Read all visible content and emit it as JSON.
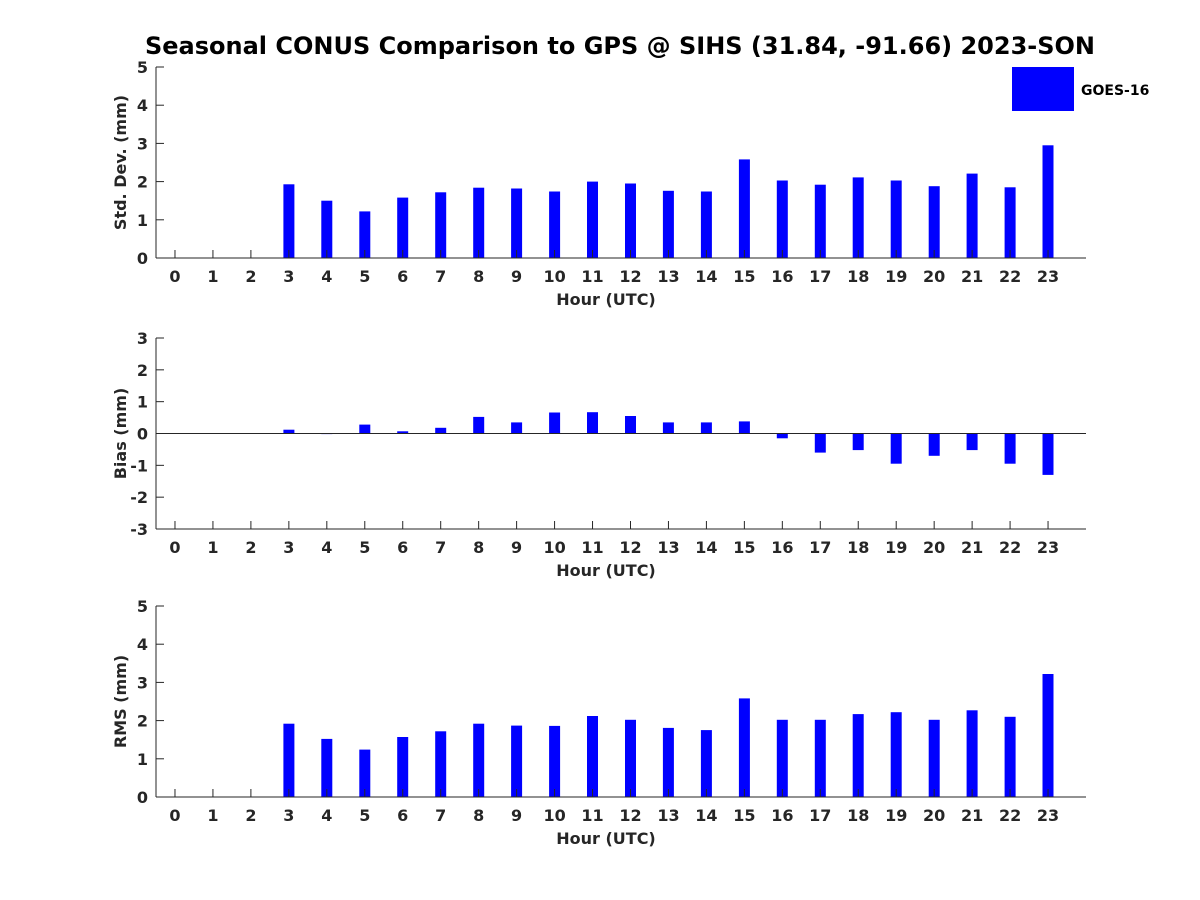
{
  "title": "Seasonal CONUS Comparison to GPS @ SIHS (31.84, -91.66) 2023-SON",
  "legend": {
    "label": "GOES-16",
    "color": "#0000ff",
    "placement": "top-right"
  },
  "chart_data": [
    {
      "type": "bar",
      "name": "std_dev",
      "xlabel": "Hour (UTC)",
      "ylabel": "Std. Dev. (mm)",
      "ylim": [
        0,
        5
      ],
      "yticks": [
        0,
        1,
        2,
        3,
        4,
        5
      ],
      "categories": [
        "0",
        "1",
        "2",
        "3",
        "4",
        "5",
        "6",
        "7",
        "8",
        "9",
        "10",
        "11",
        "12",
        "13",
        "14",
        "15",
        "16",
        "17",
        "18",
        "19",
        "20",
        "21",
        "22",
        "23"
      ],
      "series": [
        {
          "name": "GOES-16",
          "color": "#0000ff",
          "values": [
            null,
            null,
            null,
            1.93,
            1.5,
            1.22,
            1.58,
            1.72,
            1.84,
            1.82,
            1.74,
            2.0,
            1.95,
            1.76,
            1.74,
            2.58,
            2.03,
            1.92,
            2.11,
            2.03,
            1.88,
            2.21,
            1.85,
            2.95
          ]
        }
      ]
    },
    {
      "type": "bar",
      "name": "bias",
      "xlabel": "Hour (UTC)",
      "ylabel": "Bias (mm)",
      "ylim": [
        -3,
        3
      ],
      "yticks": [
        -3,
        -2,
        -1,
        0,
        1,
        2,
        3
      ],
      "categories": [
        "0",
        "1",
        "2",
        "3",
        "4",
        "5",
        "6",
        "7",
        "8",
        "9",
        "10",
        "11",
        "12",
        "13",
        "14",
        "15",
        "16",
        "17",
        "18",
        "19",
        "20",
        "21",
        "22",
        "23"
      ],
      "series": [
        {
          "name": "GOES-16",
          "color": "#0000ff",
          "values": [
            null,
            null,
            null,
            0.12,
            -0.02,
            0.28,
            0.07,
            0.18,
            0.52,
            0.35,
            0.66,
            0.67,
            0.55,
            0.35,
            0.35,
            0.38,
            -0.15,
            -0.6,
            -0.52,
            -0.95,
            -0.7,
            -0.52,
            -0.95,
            -1.3
          ]
        }
      ]
    },
    {
      "type": "bar",
      "name": "rms",
      "xlabel": "Hour (UTC)",
      "ylabel": "RMS (mm)",
      "ylim": [
        0,
        5
      ],
      "yticks": [
        0,
        1,
        2,
        3,
        4,
        5
      ],
      "categories": [
        "0",
        "1",
        "2",
        "3",
        "4",
        "5",
        "6",
        "7",
        "8",
        "9",
        "10",
        "11",
        "12",
        "13",
        "14",
        "15",
        "16",
        "17",
        "18",
        "19",
        "20",
        "21",
        "22",
        "23"
      ],
      "series": [
        {
          "name": "GOES-16",
          "color": "#0000ff",
          "values": [
            null,
            null,
            null,
            1.92,
            1.52,
            1.24,
            1.57,
            1.72,
            1.92,
            1.87,
            1.86,
            2.12,
            2.02,
            1.81,
            1.75,
            2.58,
            2.02,
            2.02,
            2.17,
            2.22,
            2.02,
            2.27,
            2.1,
            3.22
          ]
        }
      ]
    }
  ]
}
